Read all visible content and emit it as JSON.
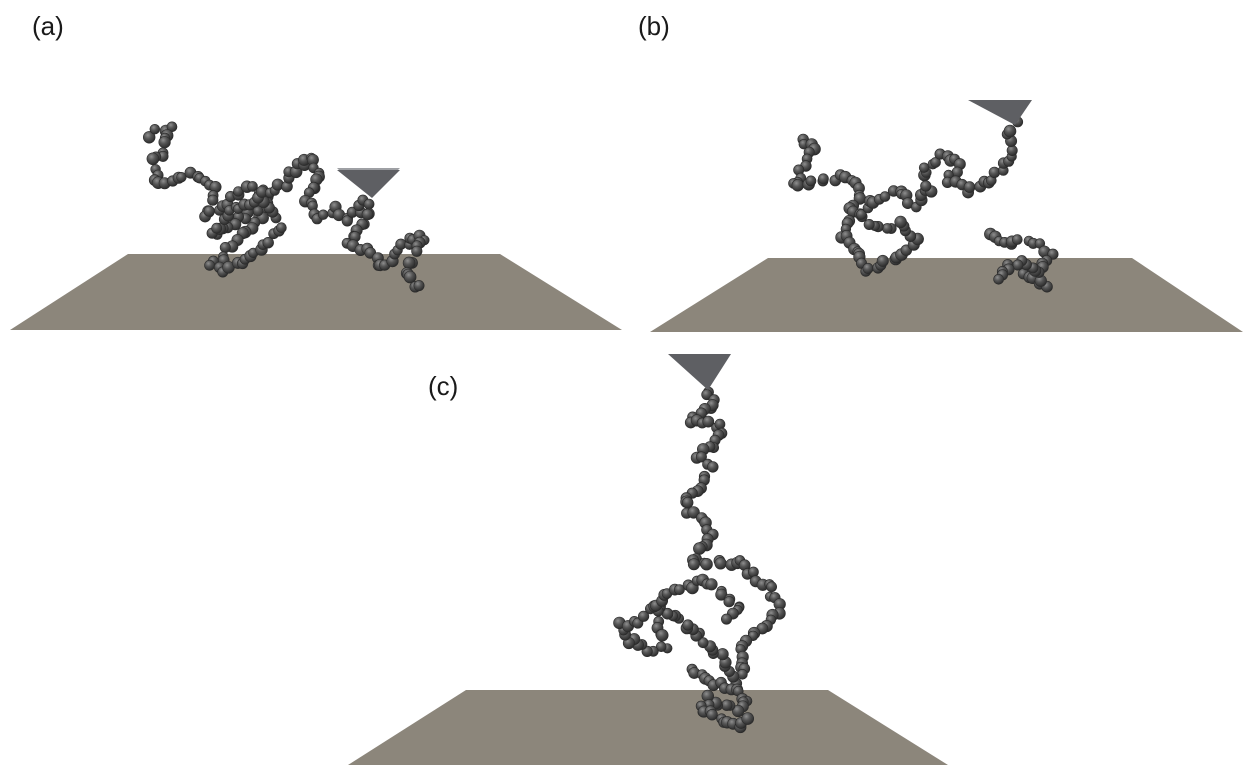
{
  "panels": [
    {
      "id": "a",
      "label": "(a)"
    },
    {
      "id": "b",
      "label": "(b)"
    },
    {
      "id": "c",
      "label": "(c)"
    }
  ],
  "colors": {
    "surface": "#8c867b",
    "bead": "#4a4a4a",
    "bead_highlight": "#8a8a8a",
    "tip": "#5e5f63",
    "background": "#ffffff"
  }
}
